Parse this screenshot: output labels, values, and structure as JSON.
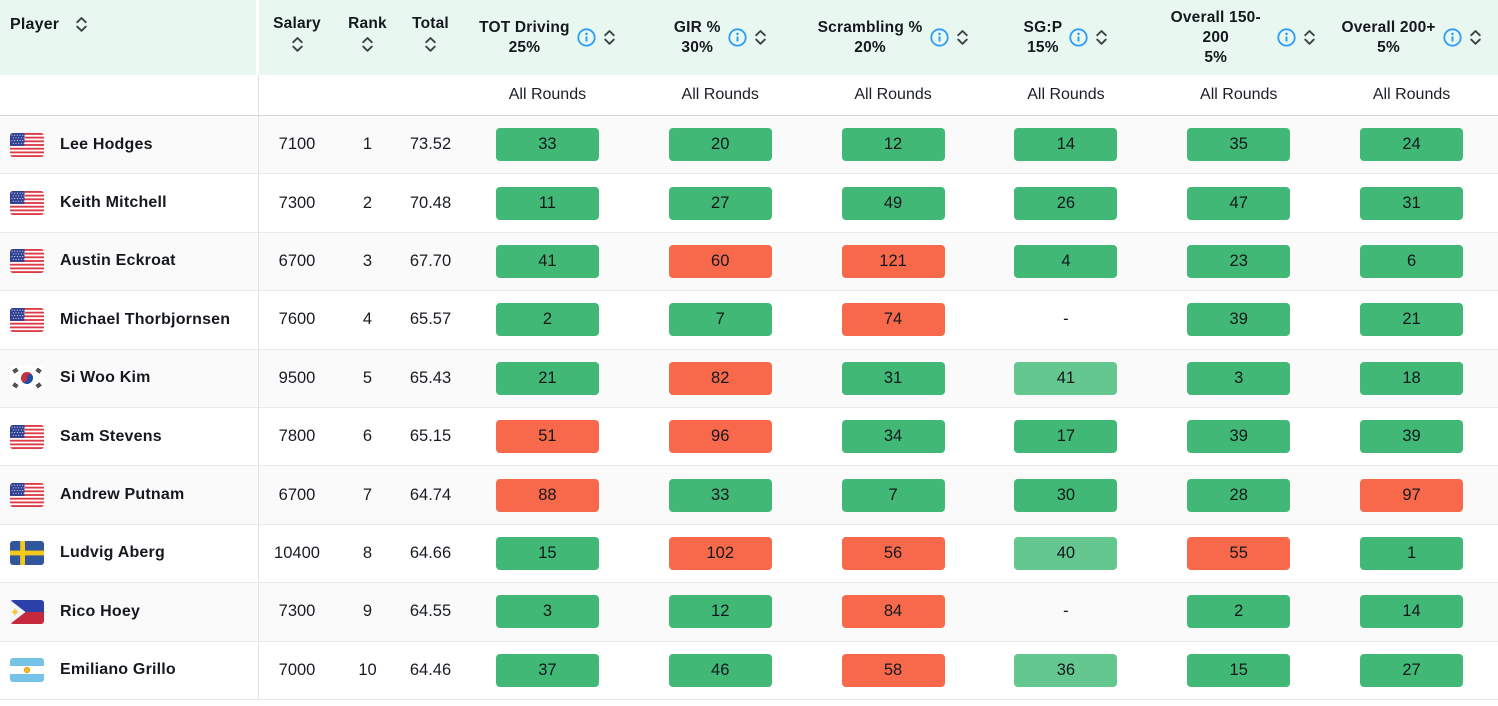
{
  "colors": {
    "header_bg": "#e8f8f0",
    "green": "#41b876",
    "green_light": "#63c78f",
    "red": "#f8694b",
    "info_icon_blue": "#2d9cf4",
    "sort_icon_gray": "#3c4148"
  },
  "table": {
    "columns": {
      "player": "Player",
      "salary": "Salary",
      "rank": "Rank",
      "total": "Total"
    },
    "stat_columns": [
      {
        "label": "TOT Driving",
        "weight": "25%",
        "subheader": "All Rounds"
      },
      {
        "label": "GIR %",
        "weight": "30%",
        "subheader": "All Rounds"
      },
      {
        "label": "Scrambling %",
        "weight": "20%",
        "subheader": "All Rounds"
      },
      {
        "label": "SG:P",
        "weight": "15%",
        "subheader": "All Rounds"
      },
      {
        "label": "Overall 150-200",
        "weight": "5%",
        "subheader": "All Rounds"
      },
      {
        "label": "Overall 200+",
        "weight": "5%",
        "subheader": "All Rounds"
      }
    ],
    "rows": [
      {
        "player": "Lee Hodges",
        "country": "us",
        "salary": "7100",
        "rank": "1",
        "total": "73.52",
        "stats": [
          {
            "value": "33",
            "color": "green"
          },
          {
            "value": "20",
            "color": "green"
          },
          {
            "value": "12",
            "color": "green"
          },
          {
            "value": "14",
            "color": "green"
          },
          {
            "value": "35",
            "color": "green"
          },
          {
            "value": "24",
            "color": "green"
          }
        ]
      },
      {
        "player": "Keith Mitchell",
        "country": "us",
        "salary": "7300",
        "rank": "2",
        "total": "70.48",
        "stats": [
          {
            "value": "11",
            "color": "green"
          },
          {
            "value": "27",
            "color": "green"
          },
          {
            "value": "49",
            "color": "green"
          },
          {
            "value": "26",
            "color": "green"
          },
          {
            "value": "47",
            "color": "green"
          },
          {
            "value": "31",
            "color": "green"
          }
        ]
      },
      {
        "player": "Austin Eckroat",
        "country": "us",
        "salary": "6700",
        "rank": "3",
        "total": "67.70",
        "stats": [
          {
            "value": "41",
            "color": "green"
          },
          {
            "value": "60",
            "color": "red"
          },
          {
            "value": "121",
            "color": "red"
          },
          {
            "value": "4",
            "color": "green"
          },
          {
            "value": "23",
            "color": "green"
          },
          {
            "value": "6",
            "color": "green"
          }
        ]
      },
      {
        "player": "Michael Thorbjornsen",
        "country": "us",
        "salary": "7600",
        "rank": "4",
        "total": "65.57",
        "stats": [
          {
            "value": "2",
            "color": "green"
          },
          {
            "value": "7",
            "color": "green"
          },
          {
            "value": "74",
            "color": "red"
          },
          {
            "value": "-",
            "color": "none"
          },
          {
            "value": "39",
            "color": "green"
          },
          {
            "value": "21",
            "color": "green"
          }
        ]
      },
      {
        "player": "Si Woo Kim",
        "country": "kr",
        "salary": "9500",
        "rank": "5",
        "total": "65.43",
        "stats": [
          {
            "value": "21",
            "color": "green"
          },
          {
            "value": "82",
            "color": "red"
          },
          {
            "value": "31",
            "color": "green"
          },
          {
            "value": "41",
            "color": "green_light"
          },
          {
            "value": "3",
            "color": "green"
          },
          {
            "value": "18",
            "color": "green"
          }
        ]
      },
      {
        "player": "Sam Stevens",
        "country": "us",
        "salary": "7800",
        "rank": "6",
        "total": "65.15",
        "stats": [
          {
            "value": "51",
            "color": "red"
          },
          {
            "value": "96",
            "color": "red"
          },
          {
            "value": "34",
            "color": "green"
          },
          {
            "value": "17",
            "color": "green"
          },
          {
            "value": "39",
            "color": "green"
          },
          {
            "value": "39",
            "color": "green"
          }
        ]
      },
      {
        "player": "Andrew Putnam",
        "country": "us",
        "salary": "6700",
        "rank": "7",
        "total": "64.74",
        "stats": [
          {
            "value": "88",
            "color": "red"
          },
          {
            "value": "33",
            "color": "green"
          },
          {
            "value": "7",
            "color": "green"
          },
          {
            "value": "30",
            "color": "green"
          },
          {
            "value": "28",
            "color": "green"
          },
          {
            "value": "97",
            "color": "red"
          }
        ]
      },
      {
        "player": "Ludvig Aberg",
        "country": "se",
        "salary": "10400",
        "rank": "8",
        "total": "64.66",
        "stats": [
          {
            "value": "15",
            "color": "green"
          },
          {
            "value": "102",
            "color": "red"
          },
          {
            "value": "56",
            "color": "red"
          },
          {
            "value": "40",
            "color": "green_light"
          },
          {
            "value": "55",
            "color": "red"
          },
          {
            "value": "1",
            "color": "green"
          }
        ]
      },
      {
        "player": "Rico Hoey",
        "country": "ph",
        "salary": "7300",
        "rank": "9",
        "total": "64.55",
        "stats": [
          {
            "value": "3",
            "color": "green"
          },
          {
            "value": "12",
            "color": "green"
          },
          {
            "value": "84",
            "color": "red"
          },
          {
            "value": "-",
            "color": "none"
          },
          {
            "value": "2",
            "color": "green"
          },
          {
            "value": "14",
            "color": "green"
          }
        ]
      },
      {
        "player": "Emiliano Grillo",
        "country": "ar",
        "salary": "7000",
        "rank": "10",
        "total": "64.46",
        "stats": [
          {
            "value": "37",
            "color": "green"
          },
          {
            "value": "46",
            "color": "green"
          },
          {
            "value": "58",
            "color": "red"
          },
          {
            "value": "36",
            "color": "green_light"
          },
          {
            "value": "15",
            "color": "green"
          },
          {
            "value": "27",
            "color": "green"
          }
        ]
      }
    ]
  }
}
